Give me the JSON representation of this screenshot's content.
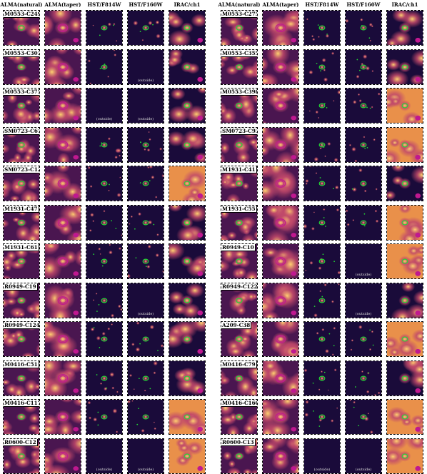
{
  "column_headers": [
    "ALMA(natural)",
    "ALMA(taper)",
    "HST/F814W",
    "HST/F160W",
    "IRAC/ch1"
  ],
  "outside_label": "(outside)",
  "left_block": [
    {
      "id": "M0553-C249",
      "outside": []
    },
    {
      "id": "M0553-C303",
      "outside": [
        3
      ]
    },
    {
      "id": "M0553-C375",
      "outside": [
        2,
        3
      ]
    },
    {
      "id": "SM0723-C61",
      "outside": []
    },
    {
      "id": "SM0723-C124",
      "outside": []
    },
    {
      "id": "M1931-C47",
      "outside": []
    },
    {
      "id": "M1931-C61",
      "outside": []
    },
    {
      "id": "R0949-C19",
      "outside": [
        3
      ]
    },
    {
      "id": "R0949-C124",
      "outside": []
    },
    {
      "id": "M0416-C51",
      "outside": []
    },
    {
      "id": "M0416-C117",
      "outside": []
    },
    {
      "id": "R0600-C12",
      "outside": [
        2,
        3
      ]
    }
  ],
  "right_block": [
    {
      "id": "M0553-C275",
      "outside": []
    },
    {
      "id": "M0553-C355",
      "outside": []
    },
    {
      "id": "M0553-C398",
      "outside": []
    },
    {
      "id": "SM0723-C93",
      "outside": []
    },
    {
      "id": "M1931-C41",
      "outside": []
    },
    {
      "id": "M1931-C55",
      "outside": []
    },
    {
      "id": "R0949-C10",
      "outside": [
        3
      ]
    },
    {
      "id": "R0949-C122",
      "outside": [
        3
      ]
    },
    {
      "id": "A209-C38",
      "outside": []
    },
    {
      "id": "M0416-C79",
      "outside": []
    },
    {
      "id": "M0416-C160",
      "outside": []
    },
    {
      "id": "R0600-C13",
      "outside": [
        2,
        3
      ]
    }
  ],
  "colors": {
    "alma_contour": "#c01890",
    "hst_contour": "#22dd33",
    "beam": "#c01890",
    "cmap_dark": "#1a0b3a",
    "cmap_mid": "#c0486a",
    "cmap_bright": "#ffd070"
  }
}
